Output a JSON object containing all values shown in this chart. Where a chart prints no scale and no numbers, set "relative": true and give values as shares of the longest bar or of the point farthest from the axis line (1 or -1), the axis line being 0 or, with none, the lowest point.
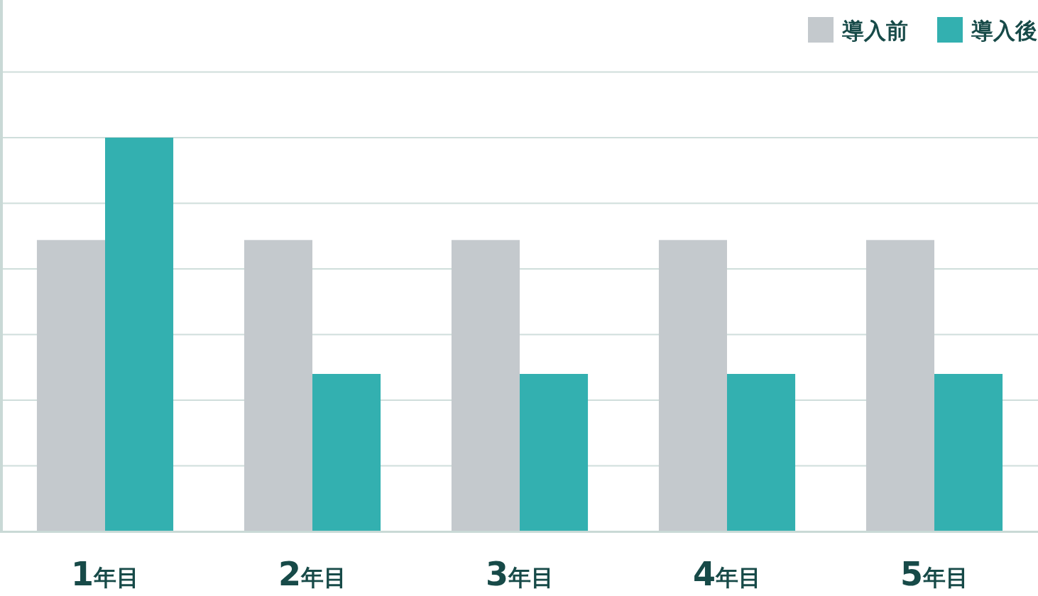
{
  "chart_data": {
    "type": "bar",
    "relative": true,
    "categories": [
      "1年目",
      "2年目",
      "3年目",
      "4年目",
      "5年目"
    ],
    "series": [
      {
        "name": "導入前",
        "color": "#c4c9cd",
        "values": [
          0.74,
          0.74,
          0.74,
          0.74,
          0.74
        ]
      },
      {
        "name": "導入後",
        "color": "#33b0b0",
        "values": [
          1,
          0.4,
          0.4,
          0.4,
          0.4
        ]
      }
    ],
    "grid": "y",
    "legend": "top right"
  }
}
